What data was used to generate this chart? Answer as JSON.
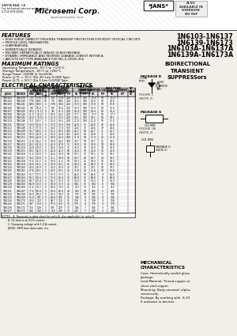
{
  "bg_color": "#f2efe9",
  "title_lines": [
    "1N6103-1N6137",
    "1N6139-1N6173",
    "1N6103A-1N6137A",
    "1N6139A-1N6173A"
  ],
  "company": "Microsemi Corp.",
  "jans_label": "*JANS*",
  "subtitle": "BIDIRECTIONAL\nTRANSIENT\nSUPPRESSors",
  "features_title": "FEATURES",
  "features": [
    "HIGH SURGE CAPACITY PROVIDES TRANSIENT PROTECTION FOR MOST CRITICAL CIRCUITS.",
    "PROFILE LEVEL PASSIVATION.",
    "SUBMINIATURE.",
    "HERMETICALLY BONDED.",
    "MILITARY HERMETICALLY SEALED GLASS PACKAGE.",
    "DYNAMIC IMPEDANCE AND REVERSE LEAKAGE LOWEST WITHIN A.",
    "JAN-S/TX-SXT TYPE AVAILABLE FOR MIL-S-19500-356."
  ],
  "max_ratings_title": "MAXIMUM RATINGS",
  "max_ratings": [
    "Operating Temperature: -65°C to +175°C.",
    "Storage Temperature: -65°C to +200°C.",
    "Surge Power: 1500W @ 1ms/50Ω.",
    "Power @ TL = 75°C (Do-35) Low 0.05W Type.",
    "Power @ TL = 50°C (Do-5 line 0.025W Type."
  ],
  "elec_char_title": "ELECTRICAL CHARACTERISTICS",
  "mech_title": "MECHANICAL\nCHARACTERISTICS",
  "mech_text": "Case: Hermetically sealed glass\npackage.\nLead Material: Tinned copper or\nsilver clad copper.\nMounting: Body oriented, alpha-\nnumerically.\nPackage: By marking with -S-19\nS indicates in devices.",
  "notes_text": "NOTES:  A. Numerals in data sheet for units A, also applicable for units B.\n        B. V2 data is at 0.1% current.\n        C. Clamping voltage with 1.0 A current.\n        JEDEC: MFR from data table, Inc.",
  "table_rows": [
    [
      "1N6103",
      "1N6139",
      "7.0",
      "7.78",
      "10",
      "6.4",
      "7.78",
      "200",
      "11.3",
      "100",
      "11.3",
      "50",
      "11.3"
    ],
    [
      "1N6104",
      "1N6140",
      "7.78",
      "8.65",
      "10",
      "7.0",
      "8.65",
      "200",
      "12.6",
      "100",
      "12.6",
      "50",
      "12.6"
    ],
    [
      "1N6105",
      "1N6141",
      "8.65",
      "9.55",
      "5",
      "7.78",
      "9.55",
      "200",
      "13.9",
      "100",
      "13.9",
      "50",
      "13.9"
    ],
    [
      "1N6106",
      "1N6142",
      "9.4",
      "10.4",
      "5",
      "8.5",
      "10.4",
      "200",
      "15.0",
      "100",
      "15.0",
      "50",
      "15.0"
    ],
    [
      "1N6107",
      "1N6143",
      "10.2",
      "11.3",
      "5",
      "9.5",
      "11.3",
      "200",
      "16.4",
      "100",
      "16.4",
      "50",
      "16.4"
    ],
    [
      "1N6108",
      "1N6144",
      "11.0",
      "12.2",
      "5",
      "10.0",
      "12.2",
      "200",
      "17.7",
      "100",
      "17.7",
      "50",
      "17.7"
    ],
    [
      "1N6109",
      "1N6145",
      "12.0",
      "13.3",
      "5",
      "11.0",
      "13.3",
      "200",
      "19.1",
      "100",
      "19.1",
      "50",
      "19.1"
    ],
    [
      "1N6110",
      "1N6146",
      "13.1",
      "14.5",
      "5",
      "12.0",
      "14.5",
      "200",
      "21.0",
      "100",
      "21.0",
      "50",
      "21.0"
    ],
    [
      "1N6111",
      "1N6147",
      "14.0",
      "15.6",
      "5",
      "13.0",
      "15.6",
      "150",
      "22.6",
      "75",
      "22.6",
      "38",
      "22.6"
    ],
    [
      "1N6112",
      "1N6148",
      "15.3",
      "17.0",
      "5",
      "14.0",
      "17.0",
      "150",
      "24.4",
      "75",
      "24.4",
      "38",
      "24.4"
    ],
    [
      "1N6113",
      "1N6149",
      "16.7",
      "18.5",
      "5",
      "15.2",
      "18.5",
      "125",
      "26.7",
      "63",
      "26.7",
      "31",
      "26.7"
    ],
    [
      "1N6114",
      "1N6150",
      "18.0",
      "20.0",
      "5",
      "16.4",
      "20.0",
      "125",
      "28.8",
      "63",
      "28.8",
      "31",
      "28.8"
    ],
    [
      "1N6115",
      "1N6151",
      "19.8",
      "22.0",
      "5",
      "18.0",
      "22.0",
      "100",
      "31.9",
      "50",
      "31.9",
      "25",
      "31.9"
    ],
    [
      "1N6116",
      "1N6152",
      "21.8",
      "24.2",
      "5",
      "19.8",
      "24.2",
      "100",
      "34.7",
      "50",
      "34.7",
      "25",
      "34.7"
    ],
    [
      "1N6117",
      "1N6153",
      "24.3",
      "27.0",
      "5",
      "22.0",
      "27.0",
      "75",
      "38.9",
      "38",
      "38.9",
      "19",
      "38.9"
    ],
    [
      "1N6118",
      "1N6154",
      "26.8",
      "29.8",
      "5",
      "24.4",
      "29.8",
      "75",
      "43.0",
      "38",
      "43.0",
      "19",
      "43.0"
    ],
    [
      "1N6119",
      "1N6155",
      "29.1",
      "32.3",
      "5",
      "26.4",
      "32.3",
      "65",
      "46.6",
      "33",
      "46.6",
      "16",
      "46.6"
    ],
    [
      "1N6120",
      "1N6156",
      "31.4",
      "34.9",
      "5",
      "28.6",
      "34.9",
      "60",
      "50.1",
      "30",
      "50.1",
      "15",
      "50.1"
    ],
    [
      "1N6121",
      "1N6157",
      "34.2",
      "38.0",
      "5",
      "31.1",
      "38.0",
      "55",
      "54.7",
      "28",
      "54.7",
      "14",
      "54.7"
    ],
    [
      "1N6122",
      "1N6158",
      "37.4",
      "41.5",
      "5",
      "34.0",
      "41.5",
      "50",
      "59.3",
      "25",
      "59.3",
      "13",
      "59.3"
    ],
    [
      "1N6123",
      "1N6159",
      "40.6",
      "45.1",
      "5",
      "36.9",
      "45.1",
      "45",
      "64.3",
      "23",
      "64.3",
      "11",
      "64.3"
    ],
    [
      "1N6124",
      "1N6160",
      "44.0",
      "48.9",
      "5",
      "40.0",
      "48.9",
      "40",
      "70.1",
      "20",
      "70.1",
      "10",
      "70.1"
    ],
    [
      "1N6125",
      "1N6161",
      "47.8",
      "53.1",
      "5",
      "43.5",
      "53.1",
      "40",
      "75.8",
      "20",
      "75.8",
      "10",
      "75.8"
    ],
    [
      "1N6126",
      "1N6162",
      "51.7",
      "57.5",
      "5",
      "47.0",
      "57.5",
      "35",
      "82.4",
      "18",
      "82.4",
      "9",
      "82.4"
    ],
    [
      "1N6127",
      "1N6163",
      "56.1",
      "62.4",
      "5",
      "51.0",
      "62.4",
      "30",
      "89.0",
      "15",
      "89.0",
      "8",
      "89.0"
    ],
    [
      "1N6128",
      "1N6164",
      "60.7",
      "67.4",
      "5",
      "55.2",
      "67.4",
      "30",
      "96.0",
      "15",
      "96.0",
      "8",
      "96.0"
    ],
    [
      "1N6129",
      "1N6165",
      "65.9",
      "73.3",
      "5",
      "59.9",
      "73.3",
      "25",
      "104",
      "13",
      "104",
      "6",
      "104"
    ],
    [
      "1N6130",
      "1N6166",
      "71.4",
      "79.3",
      "5",
      "64.9",
      "79.3",
      "25",
      "113",
      "13",
      "113",
      "6",
      "113"
    ],
    [
      "1N6131",
      "1N6167",
      "77.4",
      "86.0",
      "5",
      "70.4",
      "86.0",
      "20",
      "123",
      "10",
      "123",
      "5",
      "123"
    ],
    [
      "1N6132",
      "1N6168",
      "83.9",
      "93.2",
      "5",
      "76.3",
      "93.2",
      "20",
      "133",
      "10",
      "133",
      "5",
      "133"
    ],
    [
      "1N6133",
      "1N6169",
      "91.0",
      "101",
      "5",
      "82.8",
      "101",
      "15",
      "144",
      "8",
      "144",
      "4",
      "144"
    ],
    [
      "1N6134",
      "1N6170",
      "98.6",
      "110",
      "5",
      "89.7",
      "110",
      "15",
      "158",
      "8",
      "158",
      "4",
      "158"
    ],
    [
      "1N6135",
      "1N6171",
      "107",
      "119",
      "5",
      "97.3",
      "119",
      "15",
      "170",
      "8",
      "170",
      "4",
      "170"
    ],
    [
      "1N6136",
      "1N6172",
      "116",
      "129",
      "5",
      "105",
      "129",
      "13",
      "184",
      "7",
      "184",
      "3",
      "184"
    ],
    [
      "1N6137",
      "1N6173",
      "126",
      "140",
      "5",
      "114",
      "140",
      "13",
      "200",
      "7",
      "200",
      "3",
      "200"
    ]
  ]
}
